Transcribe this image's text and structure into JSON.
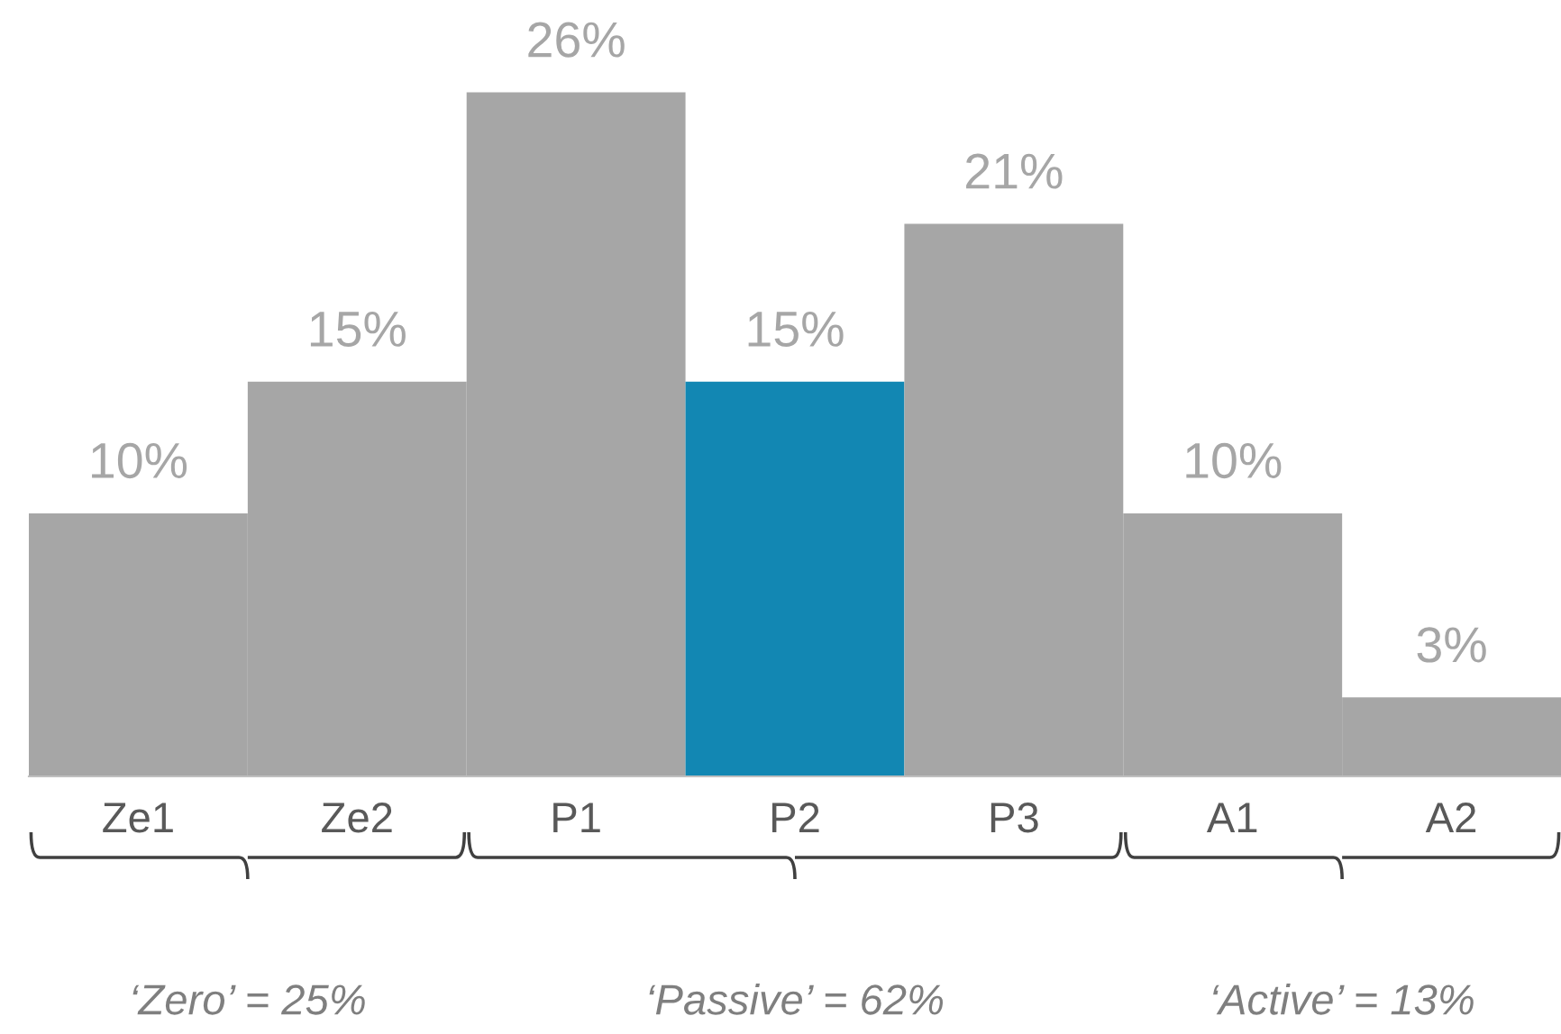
{
  "chart_data": {
    "type": "bar",
    "categories": [
      "Ze1",
      "Ze2",
      "P1",
      "P2",
      "P3",
      "A1",
      "A2"
    ],
    "values": [
      10,
      15,
      26,
      15,
      21,
      10,
      3
    ],
    "value_labels": [
      "10%",
      "15%",
      "26%",
      "15%",
      "21%",
      "10%",
      "3%"
    ],
    "colors": [
      "#a6a6a6",
      "#a6a6a6",
      "#a6a6a6",
      "#1287b3",
      "#a6a6a6",
      "#a6a6a6",
      "#a6a6a6"
    ],
    "annotations": [
      "‘Zero’ = 25%",
      "‘Passive’ = 62%",
      "‘Active’ = 13%"
    ],
    "grid": false,
    "legend": false
  }
}
